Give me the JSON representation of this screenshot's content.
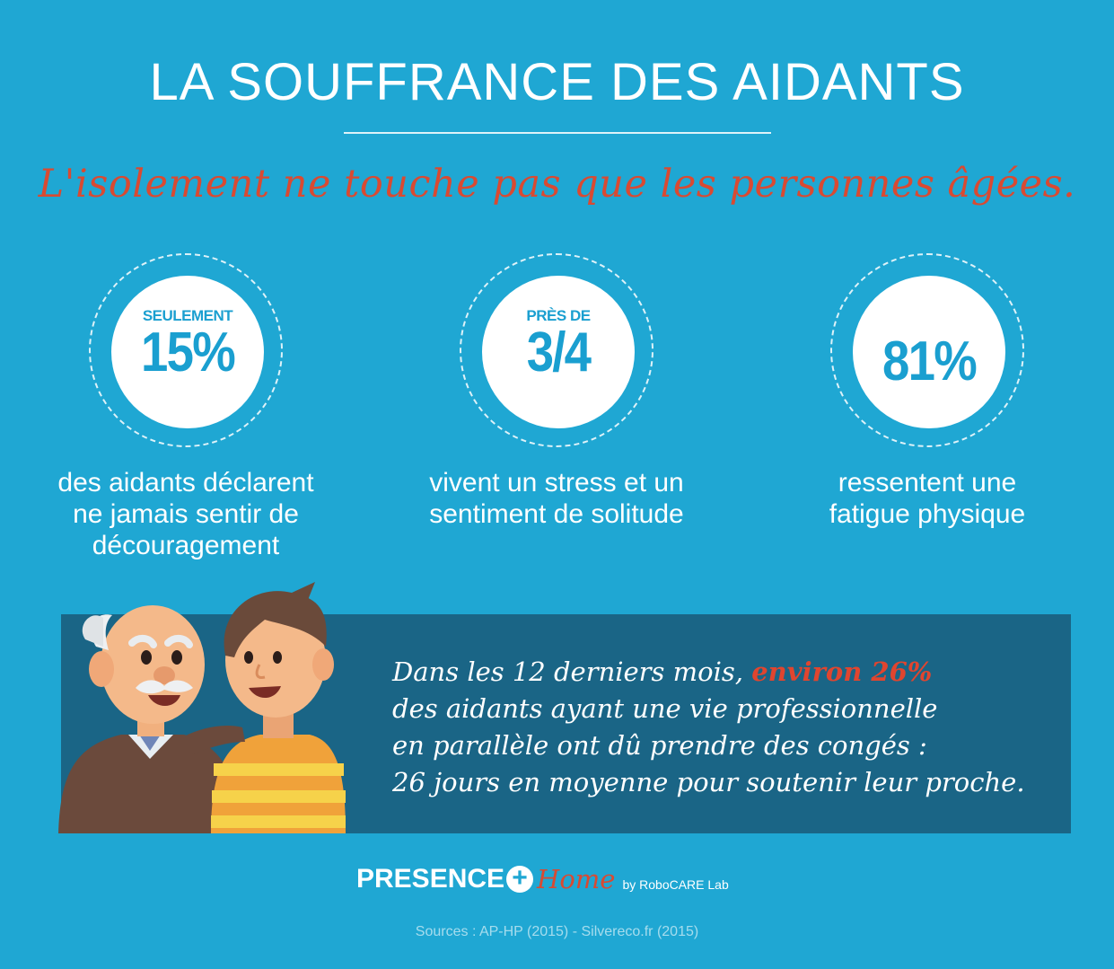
{
  "header": {
    "title": "LA SOUFFRANCE DES AIDANTS",
    "subtitle": "L'isolement ne touche pas que les personnes âgées."
  },
  "stats": [
    {
      "prefix": "SEULEMENT",
      "value": "15%",
      "desc_lines": [
        "des aidants déclarent",
        "ne jamais sentir de",
        "découragement"
      ]
    },
    {
      "prefix": "PRÈS DE",
      "value": "3/4",
      "desc_lines": [
        "vivent un stress et un",
        "sentiment de solitude"
      ]
    },
    {
      "prefix": "",
      "value": "81%",
      "desc_lines": [
        "ressentent une",
        "fatigue physique"
      ]
    }
  ],
  "banner": {
    "line1_a": "Dans les 12 derniers mois, ",
    "line1_highlight": "environ 26%",
    "line2": "des aidants ayant une vie professionnelle",
    "line3": "en parallèle ont dû prendre des congés :",
    "line4": "26 jours en moyenne pour soutenir leur proche."
  },
  "brand": {
    "name": "PRESENCE",
    "plus": "+",
    "home": "Home",
    "by": "by RoboCARE Lab"
  },
  "sources": "Sources : AP-HP (2015) - Silvereco.fr (2015)",
  "colors": {
    "background": "#1fa7d3",
    "banner": "#1a6586",
    "accent_red": "#d94a32",
    "stat_number": "#1a9fd0"
  }
}
